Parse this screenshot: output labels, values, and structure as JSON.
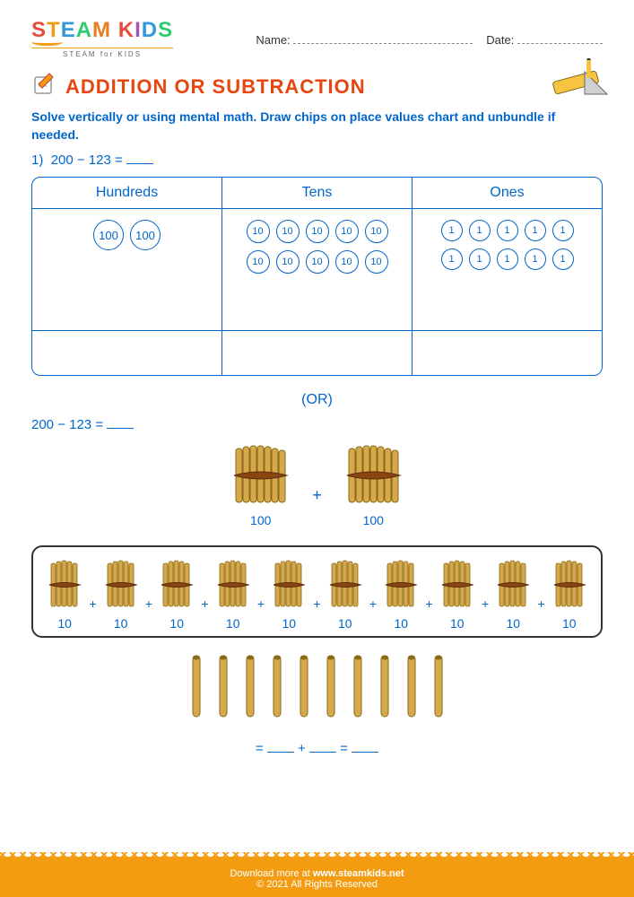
{
  "header": {
    "logo_text": "STEAM KIDS",
    "logo_sub": "STEAM for KIDS",
    "name_label": "Name:",
    "date_label": "Date:"
  },
  "title": "ADDITION OR SUBTRACTION",
  "instruction": "Solve vertically or using mental math. Draw chips on place values chart and unbundle if needed.",
  "problem": {
    "number": "1)",
    "expression": "200 − 123 ="
  },
  "place_value_table": {
    "headers": [
      "Hundreds",
      "Tens",
      "Ones"
    ],
    "hundreds_chips": [
      100,
      100
    ],
    "tens_chips_row1": [
      10,
      10,
      10,
      10,
      10
    ],
    "tens_chips_row2": [
      10,
      10,
      10,
      10,
      10
    ],
    "ones_chips_row1": [
      1,
      1,
      1,
      1,
      1
    ],
    "ones_chips_row2": [
      1,
      1,
      1,
      1,
      1
    ]
  },
  "or_text": "(OR)",
  "alt_expression": "200 − 123 =",
  "hundreds_bundles": {
    "values": [
      100,
      100
    ],
    "plus": "+"
  },
  "tens_bundles": {
    "values": [
      10,
      10,
      10,
      10,
      10,
      10,
      10,
      10,
      10,
      10
    ],
    "plus": "+"
  },
  "ones_sticks_count": 10,
  "answer_format": {
    "eq": "=",
    "plus": "+"
  },
  "footer": {
    "download": "Download more at",
    "url": "www.steamkids.net",
    "copyright": "© 2021 All Rights Reserved"
  },
  "colors": {
    "primary_blue": "#0066cc",
    "title_red": "#e84610",
    "footer_orange": "#f39c12",
    "bundle_fill": "#d4a84b",
    "bundle_stroke": "#8b6914"
  }
}
